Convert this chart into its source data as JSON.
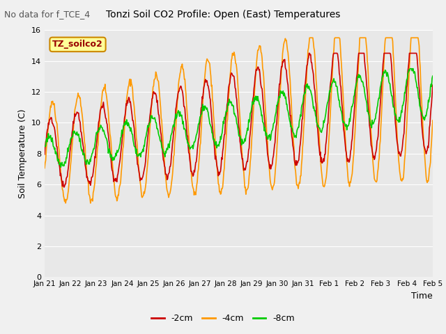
{
  "title": "Tonzi Soil CO2 Profile: Open (East) Temperatures",
  "subtitle": "No data for f_TCE_4",
  "ylabel": "Soil Temperature (C)",
  "xlabel": "Time",
  "legend_label": "TZ_soilco2",
  "ylim": [
    0,
    16
  ],
  "yticks": [
    0,
    2,
    4,
    6,
    8,
    10,
    12,
    14,
    16
  ],
  "x_tick_labels": [
    "Jan 21",
    "Jan 22",
    "Jan 23",
    "Jan 24",
    "Jan 25",
    "Jan 26",
    "Jan 27",
    "Jan 28",
    "Jan 29",
    "Jan 30",
    "Jan 31",
    "Feb 1",
    "Feb 2",
    "Feb 3",
    "Feb 4",
    "Feb 5"
  ],
  "color_2cm": "#cc0000",
  "color_4cm": "#ff9900",
  "color_8cm": "#00cc00",
  "line_width": 1.2,
  "bg_color": "#e8e8e8"
}
